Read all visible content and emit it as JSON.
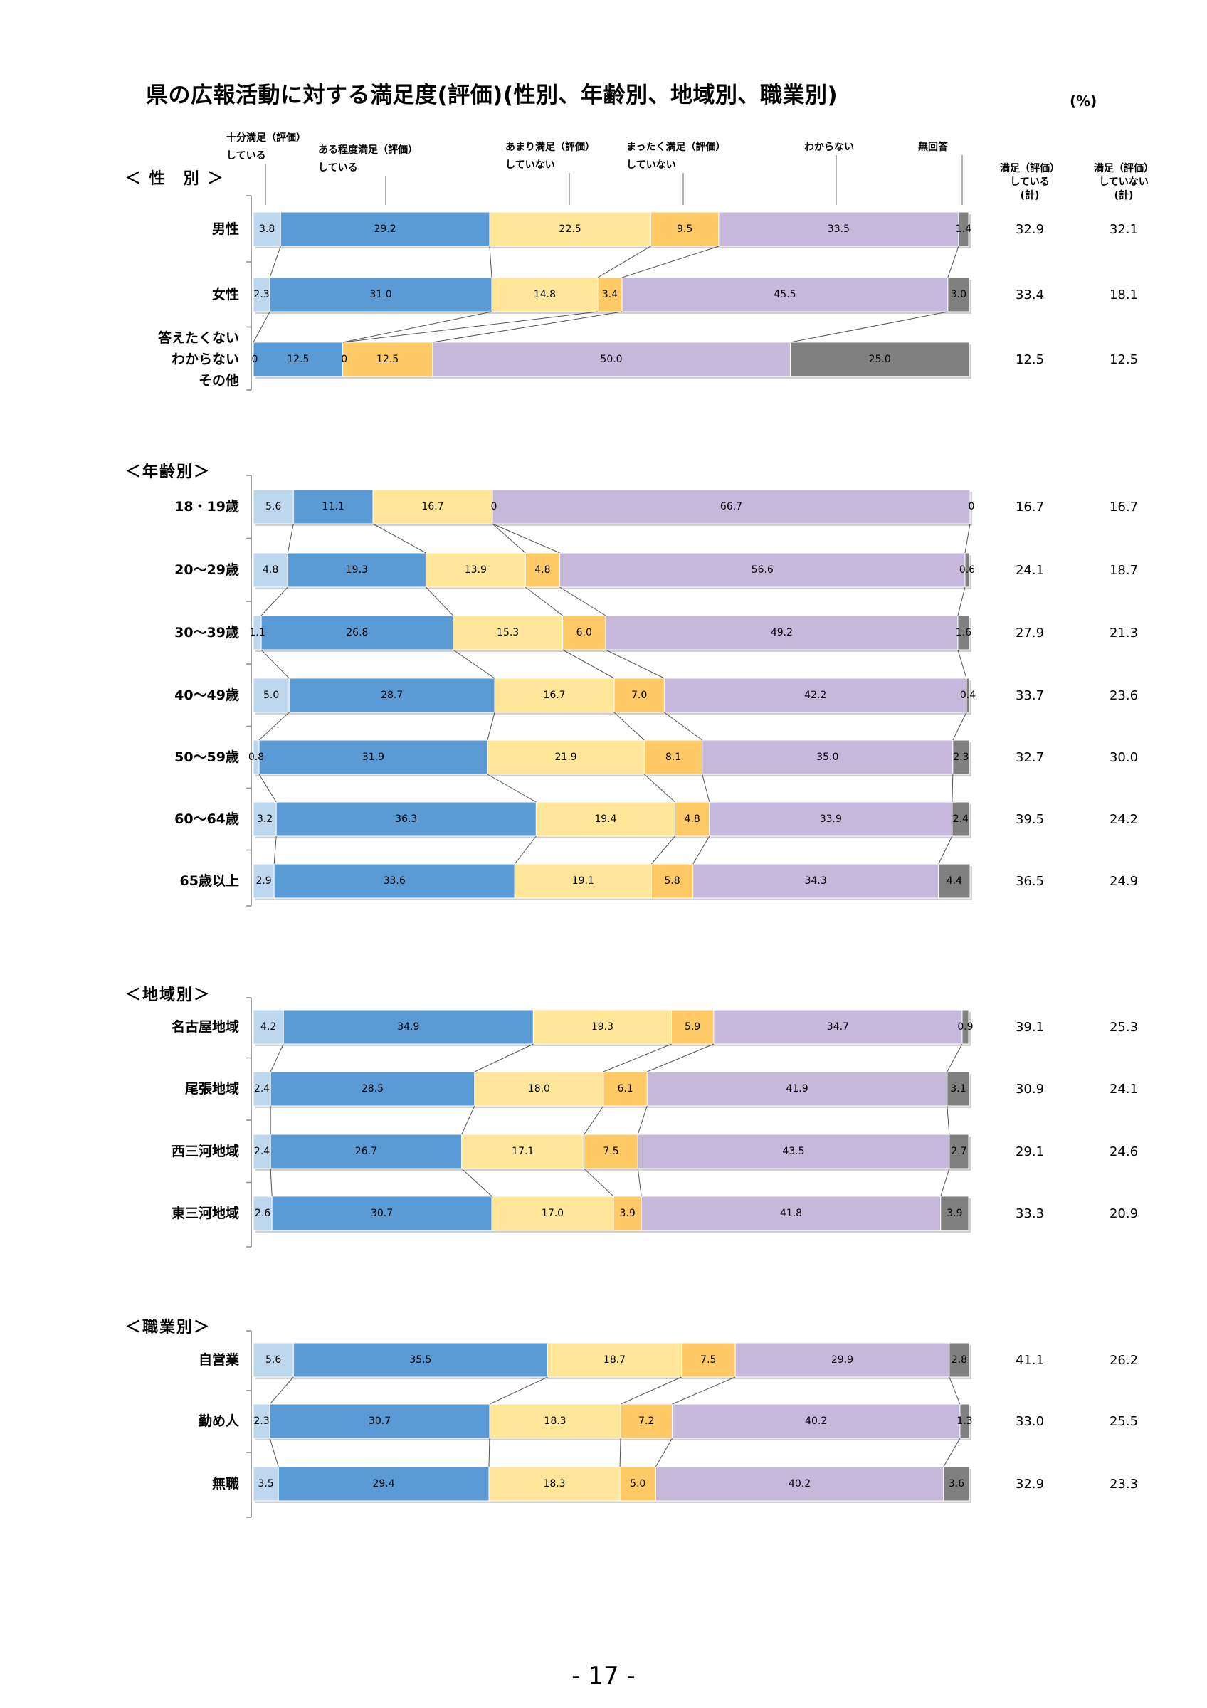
{
  "title": "県の広報活動に対する満足度(評価)(性別、年齢別、地域別、職業別)",
  "unit": "(%)",
  "page_number": "- 17 -",
  "summary_headers": [
    {
      "line1": "満足（評価）",
      "line2": "している",
      "line3": "(計)"
    },
    {
      "line1": "満足（評価）",
      "line2": "していない",
      "line3": "(計)"
    }
  ],
  "legend": [
    {
      "line1": "十分満足（評価）",
      "line2": "している"
    },
    {
      "line1": "ある程度満足（評価）",
      "line2": "している"
    },
    {
      "line1": "あまり満足（評価）",
      "line2": "していない"
    },
    {
      "line1": "まったく満足（評価）",
      "line2": "していない"
    },
    {
      "line1": "わからない",
      "line2": ""
    },
    {
      "line1": "無回答",
      "line2": ""
    }
  ],
  "colors": [
    "#bdd7ee",
    "#5b9bd5",
    "#ffe699",
    "#ffc966",
    "#c5b8db",
    "#808080"
  ],
  "chart_data": {
    "type": "bar",
    "orientation": "horizontal-stacked-100",
    "title": "県の広報活動に対する満足度(評価)(性別、年齢別、地域別、職業別)",
    "series_names": [
      "十分満足（評価）している",
      "ある程度満足（評価）している",
      "あまり満足（評価）していない",
      "まったく満足（評価）していない",
      "わからない",
      "無回答"
    ],
    "groups": [
      {
        "title": "＜ 性　別 ＞",
        "rows": [
          {
            "label": [
              "男性"
            ],
            "values": [
              "3.8",
              "29.2",
              "22.5",
              "9.5",
              "33.5",
              "1.4"
            ],
            "sat": "32.9",
            "unsat": "32.1"
          },
          {
            "label": [
              "女性"
            ],
            "values": [
              "2.3",
              "31.0",
              "14.8",
              "3.4",
              "45.5",
              "3.0"
            ],
            "sat": "33.4",
            "unsat": "18.1"
          },
          {
            "label": [
              "答えたくない",
              "わからない",
              "その他"
            ],
            "values": [
              "0",
              "12.5",
              "0",
              "12.5",
              "50.0",
              "25.0"
            ],
            "sat": "12.5",
            "unsat": "12.5"
          }
        ]
      },
      {
        "title": "＜年齢別＞",
        "rows": [
          {
            "label": [
              "18・19歳"
            ],
            "values": [
              "5.6",
              "11.1",
              "16.7",
              "0",
              "66.7",
              "0"
            ],
            "sat": "16.7",
            "unsat": "16.7"
          },
          {
            "label": [
              "20～29歳"
            ],
            "values": [
              "4.8",
              "19.3",
              "13.9",
              "4.8",
              "56.6",
              "0.6"
            ],
            "sat": "24.1",
            "unsat": "18.7"
          },
          {
            "label": [
              "30～39歳"
            ],
            "values": [
              "1.1",
              "26.8",
              "15.3",
              "6.0",
              "49.2",
              "1.6"
            ],
            "sat": "27.9",
            "unsat": "21.3"
          },
          {
            "label": [
              "40～49歳"
            ],
            "values": [
              "5.0",
              "28.7",
              "16.7",
              "7.0",
              "42.2",
              "0.4"
            ],
            "sat": "33.7",
            "unsat": "23.6"
          },
          {
            "label": [
              "50～59歳"
            ],
            "values": [
              "0.8",
              "31.9",
              "21.9",
              "8.1",
              "35.0",
              "2.3"
            ],
            "sat": "32.7",
            "unsat": "30.0"
          },
          {
            "label": [
              "60～64歳"
            ],
            "values": [
              "3.2",
              "36.3",
              "19.4",
              "4.8",
              "33.9",
              "2.4"
            ],
            "sat": "39.5",
            "unsat": "24.2"
          },
          {
            "label": [
              "65歳以上"
            ],
            "values": [
              "2.9",
              "33.6",
              "19.1",
              "5.8",
              "34.3",
              "4.4"
            ],
            "sat": "36.5",
            "unsat": "24.9"
          }
        ]
      },
      {
        "title": "＜地域別＞",
        "rows": [
          {
            "label": [
              "名古屋地域"
            ],
            "values": [
              "4.2",
              "34.9",
              "19.3",
              "5.9",
              "34.7",
              "0.9"
            ],
            "sat": "39.1",
            "unsat": "25.3"
          },
          {
            "label": [
              "尾張地域"
            ],
            "values": [
              "2.4",
              "28.5",
              "18.0",
              "6.1",
              "41.9",
              "3.1"
            ],
            "sat": "30.9",
            "unsat": "24.1"
          },
          {
            "label": [
              "西三河地域"
            ],
            "values": [
              "2.4",
              "26.7",
              "17.1",
              "7.5",
              "43.5",
              "2.7"
            ],
            "sat": "29.1",
            "unsat": "24.6"
          },
          {
            "label": [
              "東三河地域"
            ],
            "values": [
              "2.6",
              "30.7",
              "17.0",
              "3.9",
              "41.8",
              "3.9"
            ],
            "sat": "33.3",
            "unsat": "20.9"
          }
        ]
      },
      {
        "title": "＜職業別＞",
        "rows": [
          {
            "label": [
              "自営業"
            ],
            "values": [
              "5.6",
              "35.5",
              "18.7",
              "7.5",
              "29.9",
              "2.8"
            ],
            "sat": "41.1",
            "unsat": "26.2"
          },
          {
            "label": [
              "勤め人"
            ],
            "values": [
              "2.3",
              "30.7",
              "18.3",
              "7.2",
              "40.2",
              "1.3"
            ],
            "sat": "33.0",
            "unsat": "25.5"
          },
          {
            "label": [
              "無職"
            ],
            "values": [
              "3.5",
              "29.4",
              "18.3",
              "5.0",
              "40.2",
              "3.6"
            ],
            "sat": "32.9",
            "unsat": "23.3"
          }
        ]
      }
    ]
  }
}
